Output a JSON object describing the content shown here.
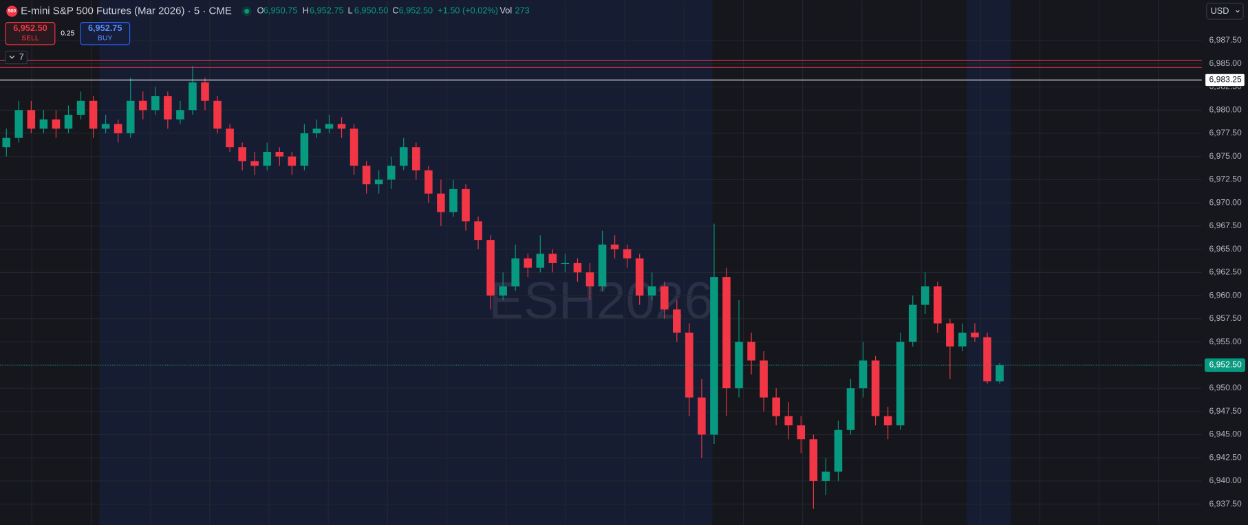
{
  "header": {
    "symbol_badge": "500",
    "title": "E-mini S&P 500 Futures (Mar 2026) · 5 · CME",
    "o_label": "O",
    "open": "6,950.75",
    "h_label": "H",
    "high": "6,952.75",
    "l_label": "L",
    "low": "6,950.50",
    "c_label": "C",
    "close": "6,952.50",
    "change": "+1.50 (+0.02%)",
    "vol_label": "Vol",
    "volume": "273"
  },
  "order_panel": {
    "sell_price": "6,952.50",
    "sell": "SELL",
    "spread": "0.25",
    "buy_price": "6,952.75",
    "buy": "BUY",
    "indicators_count": "7"
  },
  "currency": "USD",
  "chart_data": {
    "type": "candlestick",
    "watermark": "ESH2026",
    "up_color": "#089981",
    "down_color": "#f23645",
    "grid": true,
    "ylim": [
      6935.27,
      6991.86
    ],
    "yticks": [
      {
        "value": 6937.5,
        "label": "6,937.50"
      },
      {
        "value": 6940,
        "label": "6,940.00"
      },
      {
        "value": 6942.5,
        "label": "6,942.50"
      },
      {
        "value": 6945,
        "label": "6,945.00"
      },
      {
        "value": 6947.5,
        "label": "6,947.50"
      },
      {
        "value": 6950,
        "label": "6,950.00"
      },
      {
        "value": 6952.5,
        "label": "6,952.50"
      },
      {
        "value": 6955,
        "label": "6,955.00"
      },
      {
        "value": 6957.5,
        "label": "6,957.50"
      },
      {
        "value": 6960,
        "label": "6,960.00"
      },
      {
        "value": 6962.5,
        "label": "6,962.50"
      },
      {
        "value": 6965,
        "label": "6,965.00"
      },
      {
        "value": 6967.5,
        "label": "6,967.50"
      },
      {
        "value": 6970,
        "label": "6,970.00"
      },
      {
        "value": 6972.5,
        "label": "6,972.50"
      },
      {
        "value": 6975,
        "label": "6,975.00"
      },
      {
        "value": 6977.5,
        "label": "6,977.50"
      },
      {
        "value": 6980,
        "label": "6,980.00"
      },
      {
        "value": 6982.5,
        "label": "6,982.50"
      },
      {
        "value": 6985,
        "label": "6,985.00"
      },
      {
        "value": 6987.5,
        "label": "6,987.50"
      }
    ],
    "open": [
      6976,
      6977,
      6980,
      6978,
      6979,
      6978,
      6979.5,
      6981,
      6978,
      6978.5,
      6977.5,
      6981,
      6980,
      6981.5,
      6979,
      6980,
      6983,
      6981,
      6978,
      6976,
      6974.5,
      6974,
      6975.5,
      6975,
      6974,
      6977.5,
      6978,
      6978.5,
      6978,
      6974,
      6972,
      6972.5,
      6974,
      6976,
      6973.5,
      6971,
      6969,
      6971.5,
      6968,
      6966,
      6960,
      6961,
      6964,
      6963,
      6964.5,
      6963.5,
      6963.5,
      6962.5,
      6961,
      6965.5,
      6965,
      6964,
      6960,
      6961,
      6958.5,
      6956,
      6949,
      6945,
      6962,
      6950,
      6955,
      6953,
      6949,
      6947,
      6946,
      6944.5,
      6940,
      6941,
      6945.5,
      6950,
      6953,
      6947,
      6946,
      6955,
      6959,
      6961,
      6957,
      6954.5,
      6956,
      6955.5,
      6950.75
    ],
    "high": [
      6978,
      6981,
      6981,
      6980,
      6980,
      6980.5,
      6982,
      6981.5,
      6979.5,
      6979,
      6983.5,
      6982,
      6982.5,
      6982,
      6981,
      6984.75,
      6983.5,
      6981.5,
      6978.5,
      6976.5,
      6975.5,
      6976.5,
      6976,
      6975.5,
      6978.5,
      6979,
      6979.5,
      6979.25,
      6978.5,
      6974.5,
      6973.5,
      6975,
      6977,
      6976.5,
      6974,
      6972.5,
      6972.5,
      6972,
      6968.5,
      6966.5,
      6962.5,
      6965.5,
      6964.5,
      6966.5,
      6965,
      6964.5,
      6964,
      6963.5,
      6967,
      6966.5,
      6965.5,
      6964.5,
      6962.5,
      6961.5,
      6959.5,
      6957,
      6951,
      6967.75,
      6963,
      6959.5,
      6956,
      6954,
      6950,
      6948.5,
      6947,
      6945,
      6942.5,
      6946.5,
      6951,
      6955,
      6953.5,
      6948,
      6956,
      6960,
      6962.5,
      6961.5,
      6957.5,
      6957,
      6957,
      6956,
      6952.75
    ],
    "low": [
      6975,
      6976.5,
      6977.5,
      6977.5,
      6977,
      6977.5,
      6979,
      6977,
      6977.5,
      6976.5,
      6977,
      6979,
      6979.5,
      6978,
      6978.5,
      6979.5,
      6980,
      6977.5,
      6975.5,
      6973.5,
      6973,
      6973.5,
      6974,
      6973,
      6973.5,
      6977,
      6977.5,
      6977,
      6973,
      6971,
      6971,
      6971.5,
      6973.5,
      6972.5,
      6970,
      6967.5,
      6968.5,
      6967,
      6965,
      6958.5,
      6959.5,
      6960.5,
      6962,
      6962.5,
      6962.5,
      6962.5,
      6961.5,
      6959.5,
      6960.5,
      6964,
      6963,
      6959,
      6959.5,
      6957.5,
      6955,
      6947,
      6942.5,
      6944,
      6947,
      6949,
      6951.5,
      6947.5,
      6946,
      6944.5,
      6943,
      6937,
      6938.5,
      6940,
      6945,
      6949,
      6946,
      6944.5,
      6945.5,
      6954.5,
      6958,
      6956,
      6951,
      6954,
      6955,
      6950.5,
      6950.5
    ],
    "close": [
      6977,
      6980,
      6978,
      6979,
      6978,
      6979.5,
      6981,
      6978,
      6978.5,
      6977.5,
      6981,
      6980,
      6981.5,
      6979,
      6980,
      6983,
      6981,
      6978,
      6976,
      6974.5,
      6974,
      6975.5,
      6975,
      6974,
      6977.5,
      6978,
      6978.5,
      6978,
      6974,
      6972,
      6972.5,
      6974,
      6976,
      6973.5,
      6971,
      6969,
      6971.5,
      6968,
      6966,
      6960,
      6961,
      6964,
      6963,
      6964.5,
      6963.5,
      6963.5,
      6962.5,
      6961,
      6965.5,
      6965,
      6964,
      6960,
      6961,
      6958.5,
      6956,
      6949,
      6945,
      6962,
      6950,
      6955,
      6953,
      6949,
      6947,
      6946,
      6944.5,
      6940,
      6941,
      6945.5,
      6950,
      6953,
      6947,
      6946,
      6955,
      6959,
      6961,
      6957,
      6954.5,
      6956,
      6955.5,
      6950.75,
      6952.5
    ],
    "alert_lines": [
      {
        "value": 6985.35,
        "color": "#f23645"
      },
      {
        "value": 6984.6,
        "color": "#f23645"
      }
    ],
    "price_lines": [
      {
        "value": 6983.25,
        "label": "6,983.25",
        "color": "#ffffff",
        "style": "solid"
      },
      {
        "value": 6952.5,
        "label": "6,952.50",
        "color": "#089981",
        "style": "dotted"
      }
    ]
  }
}
